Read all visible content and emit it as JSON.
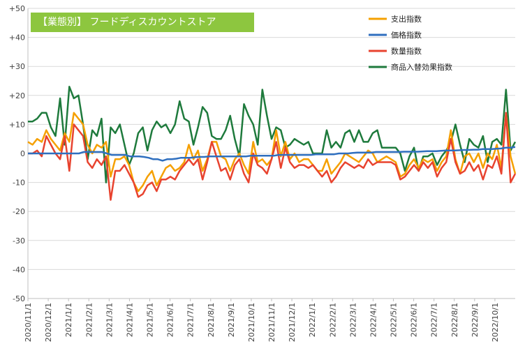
{
  "title_badge": "【業態別】 フードディスカウントストア",
  "chart_data": {
    "type": "line",
    "title": "【業態別】 フードディスカウントストア",
    "ylim": [
      -50,
      50
    ],
    "y_ticks": [
      "+50",
      "+40",
      "+30",
      "+20",
      "+10",
      "0",
      "-10",
      "-20",
      "-30",
      "-40",
      "-50"
    ],
    "y_tick_values": [
      50,
      40,
      30,
      20,
      10,
      0,
      -10,
      -20,
      -30,
      -40,
      -50
    ],
    "x_tick_labels": [
      "2020/11/1",
      "2020/12/1",
      "2021/1/1",
      "2021/2/1",
      "2021/3/1",
      "2021/4/1",
      "2021/5/1",
      "2021/6/1",
      "2021/7/1",
      "2021/8/1",
      "2021/9/1",
      "2021/10/1",
      "2021/11/1",
      "2021/12/1",
      "2022/1/1",
      "2022/2/1",
      "2022/3/1",
      "2022/4/1",
      "2022/5/1",
      "2022/6/1",
      "2022/7/1",
      "2022/8/1",
      "2022/9/1",
      "2022/10/1"
    ],
    "grid": true,
    "legend_position": "top-right",
    "series": [
      {
        "name": "支出指数",
        "color": "#f5a000",
        "values": [
          4,
          3,
          5,
          4,
          8,
          5,
          3,
          1,
          7,
          4,
          14,
          12,
          10,
          3,
          0,
          3,
          2,
          4,
          -8,
          -2,
          -2,
          -1,
          -4,
          -10,
          -13,
          -11,
          -8,
          -6,
          -11,
          -8,
          -5,
          -4,
          -6,
          -5,
          -3,
          3,
          -2,
          1,
          -6,
          -2,
          4,
          4,
          -1,
          -2,
          -6,
          -2,
          0,
          -4,
          -7,
          4,
          -3,
          -2,
          -4,
          -2,
          8,
          -1,
          4,
          -2,
          0,
          -3,
          -2,
          -2,
          -4,
          -6,
          -6,
          -2,
          -7,
          -5,
          -3,
          0,
          -1,
          -2,
          -3,
          -1,
          1,
          0,
          -3,
          -2,
          -1,
          -2,
          -3,
          -8,
          -7,
          -4,
          -2,
          -5,
          -2,
          -3,
          -2,
          -6,
          -3,
          -1,
          8,
          -2,
          -7,
          -1,
          0,
          -3,
          0,
          -5,
          0,
          -2,
          3,
          -5,
          14,
          -1,
          -7
        ]
      },
      {
        "name": "価格指数",
        "color": "#2f6fbf",
        "values": [
          0,
          0,
          0,
          0,
          0,
          0,
          0,
          0,
          0,
          0,
          0,
          0,
          0.5,
          0.5,
          0.5,
          0.5,
          0.5,
          0,
          -0.5,
          -0.5,
          -0.5,
          -0.5,
          -1,
          -1,
          -1,
          -1.2,
          -1.5,
          -2,
          -2,
          -2.5,
          -2,
          -2,
          -1.8,
          -1.5,
          -1.5,
          -1.5,
          -1.3,
          -1.2,
          -1.2,
          -1,
          -1,
          -1,
          -1,
          -1,
          -1,
          -1,
          -1,
          -1,
          -0.8,
          -0.8,
          -0.8,
          -0.8,
          -0.8,
          -0.8,
          -0.5,
          -0.5,
          -0.5,
          -0.5,
          -0.5,
          -0.5,
          -0.5,
          -0.5,
          -0.3,
          -0.3,
          -0.3,
          -0.3,
          -0.3,
          0,
          0,
          0,
          0.2,
          0.3,
          0.3,
          0.3,
          0.3,
          0.5,
          0.5,
          0.5,
          0.5,
          0.5,
          0.5,
          0.6,
          0.6,
          0.6,
          0.6,
          0.7,
          0.8,
          0.8,
          0.8,
          0.9,
          1,
          1,
          1,
          1.1,
          1.2,
          1.2,
          1.3,
          1.3,
          1.5,
          1.5,
          1.5,
          1.6,
          1.7,
          2,
          2,
          2.2
        ]
      },
      {
        "name": "数量指数",
        "color": "#e8432f",
        "values": [
          0,
          0,
          1,
          -1,
          6,
          3,
          0,
          -2,
          6,
          -6,
          10,
          8,
          6,
          -3,
          -5,
          -2,
          -4,
          -1,
          -16,
          -6,
          -6,
          -4,
          -7,
          -10,
          -15,
          -14,
          -11,
          -10,
          -13,
          -9,
          -9,
          -8,
          -9,
          -6,
          -4,
          -2,
          -4,
          -2,
          -9,
          -3,
          4,
          -1,
          -6,
          -5,
          -9,
          -4,
          -2,
          -7,
          -10,
          0,
          -4,
          -5,
          -7,
          -2,
          4,
          -5,
          2,
          -3,
          -5,
          -4,
          -4,
          -5,
          -4,
          -6,
          -8,
          -6,
          -10,
          -8,
          -5,
          -3,
          -4,
          -5,
          -4,
          -5,
          -2,
          -4,
          -3,
          -3,
          -3,
          -3,
          -4,
          -9,
          -8,
          -6,
          -4,
          -6,
          -3,
          -5,
          -3,
          -8,
          -5,
          -3,
          5,
          -3,
          -7,
          -6,
          -3,
          -6,
          -4,
          -9,
          -4,
          -5,
          -1,
          -7,
          14,
          -10,
          -7
        ]
      },
      {
        "name": "商品入替効果指数",
        "color": "#1e7a3c",
        "values": [
          11,
          11,
          12,
          14,
          14,
          9,
          6,
          19,
          3,
          23,
          19,
          20,
          10,
          -2,
          8,
          6,
          12,
          -10,
          9,
          7,
          10,
          3,
          -4,
          0,
          7,
          9,
          1,
          8,
          11,
          9,
          10,
          7,
          10,
          18,
          12,
          11,
          3,
          9,
          16,
          14,
          6,
          5,
          5,
          8,
          13,
          5,
          -1,
          17,
          13,
          10,
          3,
          22,
          13,
          5,
          9,
          8,
          2,
          3,
          5,
          4,
          3,
          4,
          0,
          0,
          0,
          8,
          2,
          4,
          2,
          7,
          8,
          4,
          8,
          4,
          4,
          7,
          8,
          2,
          2,
          2,
          2,
          0,
          -6,
          -1,
          2,
          -6,
          -1,
          -1,
          0,
          -4,
          -1,
          1,
          4,
          10,
          3,
          -3,
          5,
          3,
          2,
          6,
          -3,
          4,
          5,
          3,
          22,
          1,
          4
        ]
      }
    ]
  }
}
